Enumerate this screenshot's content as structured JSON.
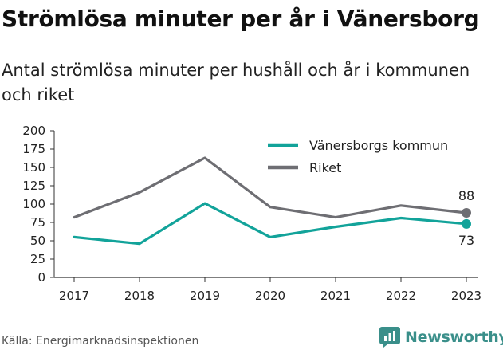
{
  "header": {
    "title": "Strömlösa minuter per år i Vänersborg",
    "subtitle": "Antal strömlösa minuter per hushåll och år i kommunen och riket"
  },
  "footer": {
    "source": "Källa: Energimarknadsinspektionen",
    "brand": "Newsworthy",
    "brand_color": "#3a8f8a"
  },
  "chart_data": {
    "type": "line",
    "x": [
      "2017",
      "2018",
      "2019",
      "2020",
      "2021",
      "2022",
      "2023"
    ],
    "series": [
      {
        "name": "Vänersborgs kommun",
        "color": "#12a39a",
        "values": [
          55,
          46,
          101,
          55,
          69,
          81,
          73
        ],
        "end_label": "73"
      },
      {
        "name": "Riket",
        "color": "#6e6e73",
        "values": [
          82,
          116,
          163,
          96,
          82,
          98,
          88
        ],
        "end_label": "88"
      }
    ],
    "ylim": [
      0,
      200
    ],
    "yticks": [
      "0",
      "25",
      "50",
      "75",
      "100",
      "125",
      "150",
      "175",
      "200"
    ],
    "grid": false,
    "legend": "top-right"
  }
}
